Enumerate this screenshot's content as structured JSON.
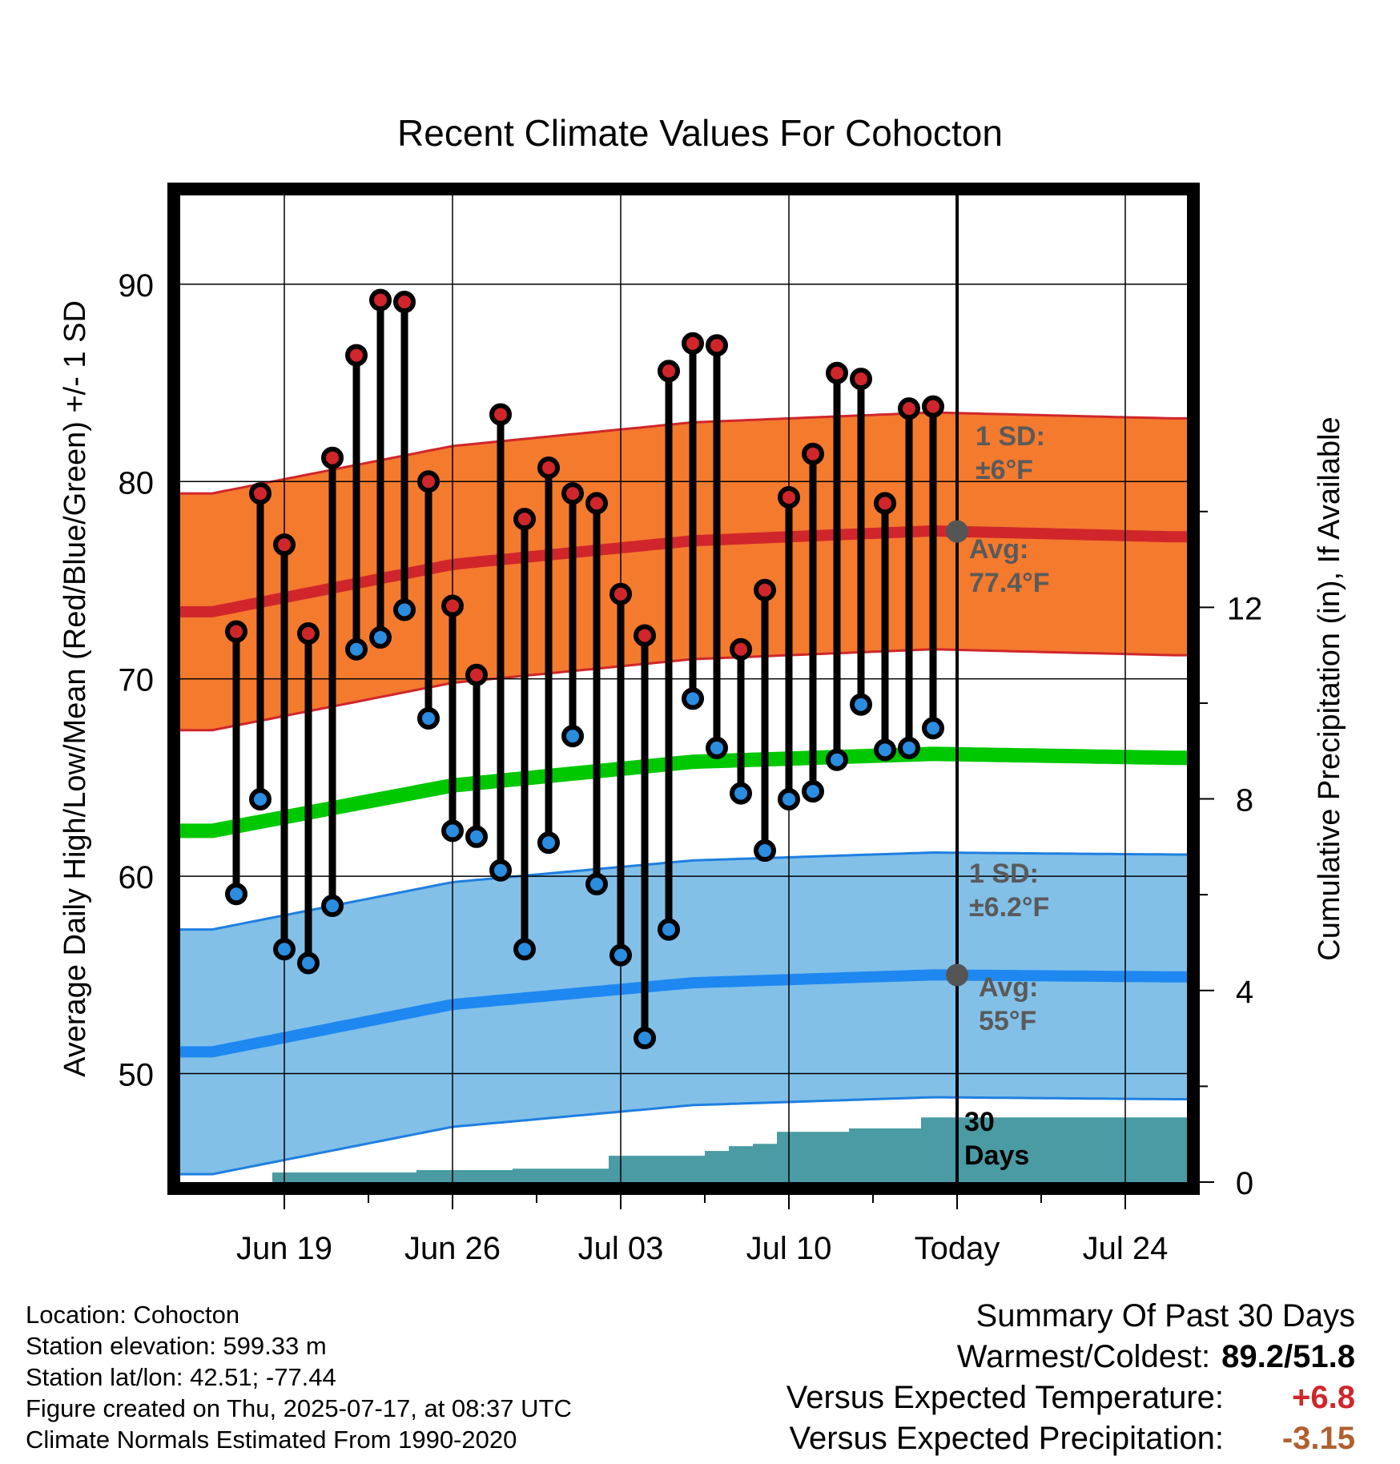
{
  "title": "Recent Climate Values For Cohocton",
  "chart_data": {
    "type": "line",
    "title": "Recent Climate Values For Cohocton",
    "xlabel": "Day",
    "ylabel": "Average Daily High/Low/Mean (Red/Blue/Green) +/- 1 SD",
    "ylabel_right": "Cumulative Precipitation (in), If Available",
    "x_ticks": [
      "Jun 19",
      "Jun 26",
      "Jul 03",
      "Jul 10",
      "Today",
      "Jul 24"
    ],
    "x_range": [
      "2025-06-16",
      "2025-07-26"
    ],
    "ylim": [
      44.5,
      94.5
    ],
    "y_ticks": [
      50,
      60,
      70,
      80,
      90
    ],
    "y2lim": [
      0,
      20.6
    ],
    "y2_ticks": [
      0,
      4,
      8,
      12
    ],
    "grid": true,
    "daily": {
      "dates": [
        "Jun 17",
        "Jun 18",
        "Jun 19",
        "Jun 20",
        "Jun 21",
        "Jun 22",
        "Jun 23",
        "Jun 24",
        "Jun 25",
        "Jun 26",
        "Jun 27",
        "Jun 28",
        "Jun 29",
        "Jun 30",
        "Jul 01",
        "Jul 02",
        "Jul 03",
        "Jul 04",
        "Jul 05",
        "Jul 06",
        "Jul 07",
        "Jul 08",
        "Jul 09",
        "Jul 10",
        "Jul 11",
        "Jul 12",
        "Jul 13",
        "Jul 14",
        "Jul 15",
        "Jul 16"
      ],
      "highs": [
        72.4,
        79.4,
        76.8,
        72.3,
        81.2,
        86.4,
        89.2,
        89.1,
        80.0,
        73.7,
        70.2,
        83.4,
        78.1,
        80.7,
        79.4,
        78.9,
        74.3,
        72.2,
        85.6,
        87.0,
        86.9,
        71.5,
        74.5,
        79.2,
        81.4,
        85.5,
        85.2,
        78.9,
        83.7,
        83.8
      ],
      "lows": [
        59.1,
        63.9,
        56.3,
        55.6,
        58.5,
        71.5,
        72.1,
        73.5,
        68.0,
        62.3,
        62.0,
        60.3,
        56.3,
        61.7,
        67.1,
        59.6,
        56.0,
        51.8,
        57.3,
        69.0,
        66.5,
        64.2,
        61.3,
        63.9,
        64.3,
        65.9,
        68.7,
        66.4,
        66.5,
        67.5
      ],
      "high_color": "#d0262b",
      "low_color": "#2a8de0"
    },
    "normals": {
      "dates": [
        "2025-06-16",
        "2025-06-26",
        "2025-07-06",
        "2025-07-16",
        "2025-07-26"
      ],
      "avg_high": [
        73.4,
        75.8,
        77.0,
        77.5,
        77.2
      ],
      "avg_low": [
        51.1,
        53.5,
        54.6,
        55.0,
        54.9
      ],
      "avg_mean": [
        62.3,
        64.6,
        65.8,
        66.2,
        66.0
      ],
      "sd_high": 6.0,
      "sd_low": 6.2,
      "high_band_color": "#f47a2e",
      "low_band_color": "#82c0e8",
      "mean_color": "#00c800"
    },
    "precip_cumulative": {
      "dates": [
        "Jun 17",
        "Jun 18",
        "Jun 19",
        "Jun 20",
        "Jun 21",
        "Jun 22",
        "Jun 23",
        "Jun 24",
        "Jun 25",
        "Jun 26",
        "Jun 27",
        "Jun 28",
        "Jun 29",
        "Jun 30",
        "Jul 01",
        "Jul 02",
        "Jul 03",
        "Jul 04",
        "Jul 05",
        "Jul 06",
        "Jul 07",
        "Jul 08",
        "Jul 09",
        "Jul 10",
        "Jul 11",
        "Jul 12",
        "Jul 13",
        "Jul 14",
        "Jul 15",
        "Jul 16",
        "Jul 17",
        "Jul 26"
      ],
      "values": [
        0.0,
        0.0,
        0.2,
        0.2,
        0.2,
        0.2,
        0.2,
        0.2,
        0.25,
        0.25,
        0.25,
        0.25,
        0.28,
        0.28,
        0.28,
        0.28,
        0.55,
        0.55,
        0.55,
        0.55,
        0.65,
        0.75,
        0.8,
        1.05,
        1.05,
        1.05,
        1.12,
        1.12,
        1.12,
        1.35,
        1.35,
        1.35
      ],
      "color": "#4a9ba3"
    },
    "annotations": {
      "high_sd": [
        "1 SD:",
        "±6°F"
      ],
      "high_avg": [
        "Avg:",
        "77.4°F"
      ],
      "low_sd": [
        "1 SD:",
        "±6.2°F"
      ],
      "low_avg": [
        "Avg:",
        "55°F"
      ],
      "days": [
        "30",
        "Days"
      ]
    }
  },
  "footer": {
    "location": "Location: Cohocton",
    "elevation": "Station elevation: 599.33 m",
    "latlon": "Station lat/lon: 42.51; -77.44",
    "created": "Figure created on Thu, 2025-07-17, at 08:37 UTC",
    "normals": "Climate Normals Estimated From 1990-2020"
  },
  "summary": {
    "heading": "Summary Of Past 30 Days",
    "warm_cold_label": "Warmest/Coldest:",
    "warm_cold_value": "89.2/51.8",
    "temp_label": "Versus Expected Temperature:",
    "temp_value": "+6.8",
    "temp_color": "#d0262b",
    "precip_label": "Versus Expected Precipitation:",
    "precip_value": "-3.15",
    "precip_color": "#b06030"
  }
}
